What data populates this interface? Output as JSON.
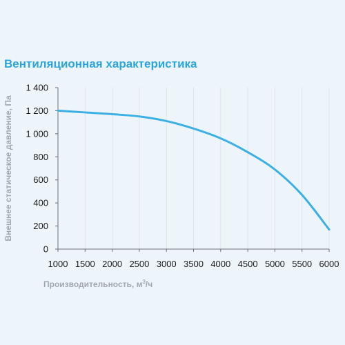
{
  "chart_data": {
    "type": "line",
    "title": "Вентиляционная характеристика",
    "xlabel": "Производительность, м",
    "xlabel_sup": "3",
    "xlabel_suffix": "/ч",
    "ylabel": "Внешнее статическое давление, Па",
    "xlim": [
      1000,
      6000
    ],
    "ylim": [
      0,
      1400
    ],
    "x_ticks": [
      1000,
      1500,
      2000,
      2500,
      3000,
      3500,
      4000,
      4500,
      5000,
      5500,
      6000
    ],
    "y_ticks": [
      0,
      200,
      400,
      600,
      800,
      1000,
      1200,
      1400
    ],
    "x_tick_labels": [
      "1000",
      "1500",
      "2000",
      "2500",
      "3000",
      "3500",
      "4000",
      "4500",
      "5000",
      "5500",
      "6000"
    ],
    "y_tick_labels": [
      "0",
      "200",
      "400",
      "600",
      "800",
      "1 000",
      "1 200",
      "1 400"
    ],
    "grid": "vertical",
    "series_color": "#3cb0e4",
    "series": [
      {
        "x": [
          1000,
          1500,
          2000,
          2500,
          3000,
          3500,
          4000,
          4500,
          5000,
          5500,
          6000
        ],
        "y": [
          1200,
          1185,
          1170,
          1150,
          1110,
          1045,
          960,
          840,
          690,
          470,
          170
        ]
      }
    ]
  }
}
